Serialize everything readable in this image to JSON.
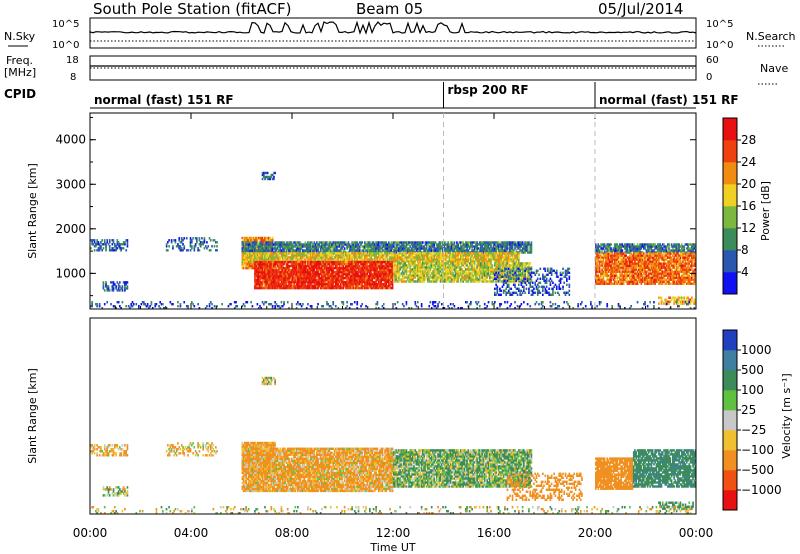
{
  "header": {
    "title": "South Pole Station (fitACF)",
    "beam": "Beam 05",
    "date": "05/Jul/2014"
  },
  "aux_panel": {
    "nsky_label": "N.Sky",
    "nsky_ticks": [
      "10^5",
      "10^0"
    ],
    "nsearch_label": "N.Search",
    "nsearch_ticks": [
      "10^5",
      "10^0"
    ],
    "freq_label_line1": "Freq.",
    "freq_label_line2": "[MHz]",
    "freq_ticks": [
      "18",
      "8"
    ],
    "nave_label": "Nave",
    "nave_ticks": [
      "60",
      "0"
    ],
    "cpid_label": "CPID"
  },
  "modes": [
    {
      "name": "normal (fast) 151 RF",
      "start_h": 0,
      "end_h": 14
    },
    {
      "name": "rbsp 200 RF",
      "start_h": 14,
      "end_h": 20
    },
    {
      "name": "normal (fast) 151 RF",
      "start_h": 20,
      "end_h": 24
    }
  ],
  "axes": {
    "x_label": "Time UT",
    "x_ticks": [
      "00:00",
      "04:00",
      "08:00",
      "12:00",
      "16:00",
      "20:00",
      "00:00"
    ],
    "y_label": "Slant Range [km]",
    "y_ticks": [
      "1000",
      "2000",
      "3000",
      "4000"
    ]
  },
  "colorbars": {
    "power": {
      "label": "Power [dB]",
      "ticks": [
        "4",
        "8",
        "12",
        "16",
        "20",
        "24",
        "28"
      ],
      "colors": [
        "#1010f0",
        "#2a58b0",
        "#3c8c5a",
        "#7cb840",
        "#f0d020",
        "#f08c10",
        "#f04010",
        "#e81010"
      ]
    },
    "velocity": {
      "label": "Velocity [m s⁻¹]",
      "ticks": [
        "1000",
        "500",
        "100",
        "25",
        "−25",
        "−100",
        "−500",
        "−1000"
      ],
      "colors": [
        "#2040c0",
        "#3f7fa0",
        "#3c8c5a",
        "#60c040",
        "#c8c8c8",
        "#f0c030",
        "#f09020",
        "#f05010",
        "#e81010"
      ]
    }
  },
  "chart_data": [
    {
      "type": "heatmap",
      "title": "South Pole Station (fitACF) Beam 05 05/Jul/2014",
      "quantity": "Power [dB]",
      "xlabel": "Time UT",
      "ylabel": "Slant Range [km]",
      "xlim_hours": [
        0,
        24
      ],
      "ylim_km": [
        200,
        4600
      ],
      "clim": [
        0,
        32
      ],
      "grid": false,
      "legend": "colorbar right",
      "regions": [
        {
          "t0": 0.0,
          "t1": 1.5,
          "r0": 1500,
          "r1": 1750,
          "value": 7,
          "density": 0.5
        },
        {
          "t0": 3.0,
          "t1": 5.0,
          "r0": 1500,
          "r1": 1800,
          "value": 7,
          "density": 0.35
        },
        {
          "t0": 0.5,
          "t1": 1.5,
          "r0": 600,
          "r1": 800,
          "value": 6,
          "density": 0.5
        },
        {
          "t0": 6.8,
          "t1": 7.3,
          "r0": 3100,
          "r1": 3250,
          "value": 7,
          "density": 0.6
        },
        {
          "t0": 6.0,
          "t1": 7.2,
          "r0": 1100,
          "r1": 1800,
          "value": 22,
          "density": 0.95
        },
        {
          "t0": 6.0,
          "t1": 17.5,
          "r0": 1450,
          "r1": 1700,
          "value": 8,
          "density": 0.85
        },
        {
          "t0": 6.0,
          "t1": 17.0,
          "r0": 1250,
          "r1": 1450,
          "value": 18,
          "density": 0.9
        },
        {
          "t0": 6.5,
          "t1": 12.0,
          "r0": 650,
          "r1": 1250,
          "value": 28,
          "density": 0.95
        },
        {
          "t0": 12.0,
          "t1": 17.5,
          "r0": 800,
          "r1": 1250,
          "value": 16,
          "density": 0.85
        },
        {
          "t0": 16.0,
          "t1": 19.0,
          "r0": 500,
          "r1": 1100,
          "value": 6,
          "density": 0.35
        },
        {
          "t0": 20.0,
          "t1": 24.0,
          "r0": 1450,
          "r1": 1650,
          "value": 8,
          "density": 0.8
        },
        {
          "t0": 20.0,
          "t1": 24.0,
          "r0": 750,
          "r1": 1450,
          "value": 24,
          "density": 0.85
        },
        {
          "t0": 22.5,
          "t1": 24.0,
          "r0": 300,
          "r1": 450,
          "value": 20,
          "density": 0.6
        },
        {
          "t0": 0.0,
          "t1": 24.0,
          "r0": 200,
          "r1": 350,
          "value": 5,
          "density": 0.15
        }
      ]
    },
    {
      "type": "heatmap",
      "title": "South Pole Station (fitACF) Beam 05 05/Jul/2014",
      "quantity": "Velocity [m s^-1]",
      "xlabel": "Time UT",
      "ylabel": "Slant Range [km]",
      "xlim_hours": [
        0,
        24
      ],
      "ylim_km": [
        200,
        4600
      ],
      "clim": [
        -1000,
        1000
      ],
      "grid": false,
      "legend": "colorbar right",
      "regions": [
        {
          "t0": 0.0,
          "t1": 1.5,
          "r0": 1500,
          "r1": 1750,
          "value": -150,
          "density": 0.5
        },
        {
          "t0": 3.0,
          "t1": 5.0,
          "r0": 1500,
          "r1": 1800,
          "value": -100,
          "density": 0.35
        },
        {
          "t0": 0.5,
          "t1": 1.5,
          "r0": 600,
          "r1": 800,
          "value": 50,
          "density": 0.5
        },
        {
          "t0": 6.8,
          "t1": 7.3,
          "r0": 3100,
          "r1": 3250,
          "value": 0,
          "density": 0.6
        },
        {
          "t0": 6.0,
          "t1": 7.3,
          "r0": 1100,
          "r1": 1800,
          "value": -200,
          "density": 0.95
        },
        {
          "t0": 6.0,
          "t1": 12.0,
          "r0": 700,
          "r1": 1650,
          "value": -150,
          "density": 0.9
        },
        {
          "t0": 12.0,
          "t1": 17.5,
          "r0": 800,
          "r1": 1650,
          "value": 100,
          "density": 0.85
        },
        {
          "t0": 16.5,
          "t1": 19.5,
          "r0": 500,
          "r1": 1100,
          "value": -300,
          "density": 0.35
        },
        {
          "t0": 20.0,
          "t1": 21.5,
          "r0": 750,
          "r1": 1450,
          "value": -300,
          "density": 0.85
        },
        {
          "t0": 21.5,
          "t1": 24.0,
          "r0": 800,
          "r1": 1650,
          "value": 400,
          "density": 0.8
        },
        {
          "t0": 22.5,
          "t1": 24.0,
          "r0": 300,
          "r1": 450,
          "value": 200,
          "density": 0.5
        },
        {
          "t0": 0.0,
          "t1": 24.0,
          "r0": 200,
          "r1": 350,
          "value": 0,
          "density": 0.15
        }
      ]
    }
  ]
}
